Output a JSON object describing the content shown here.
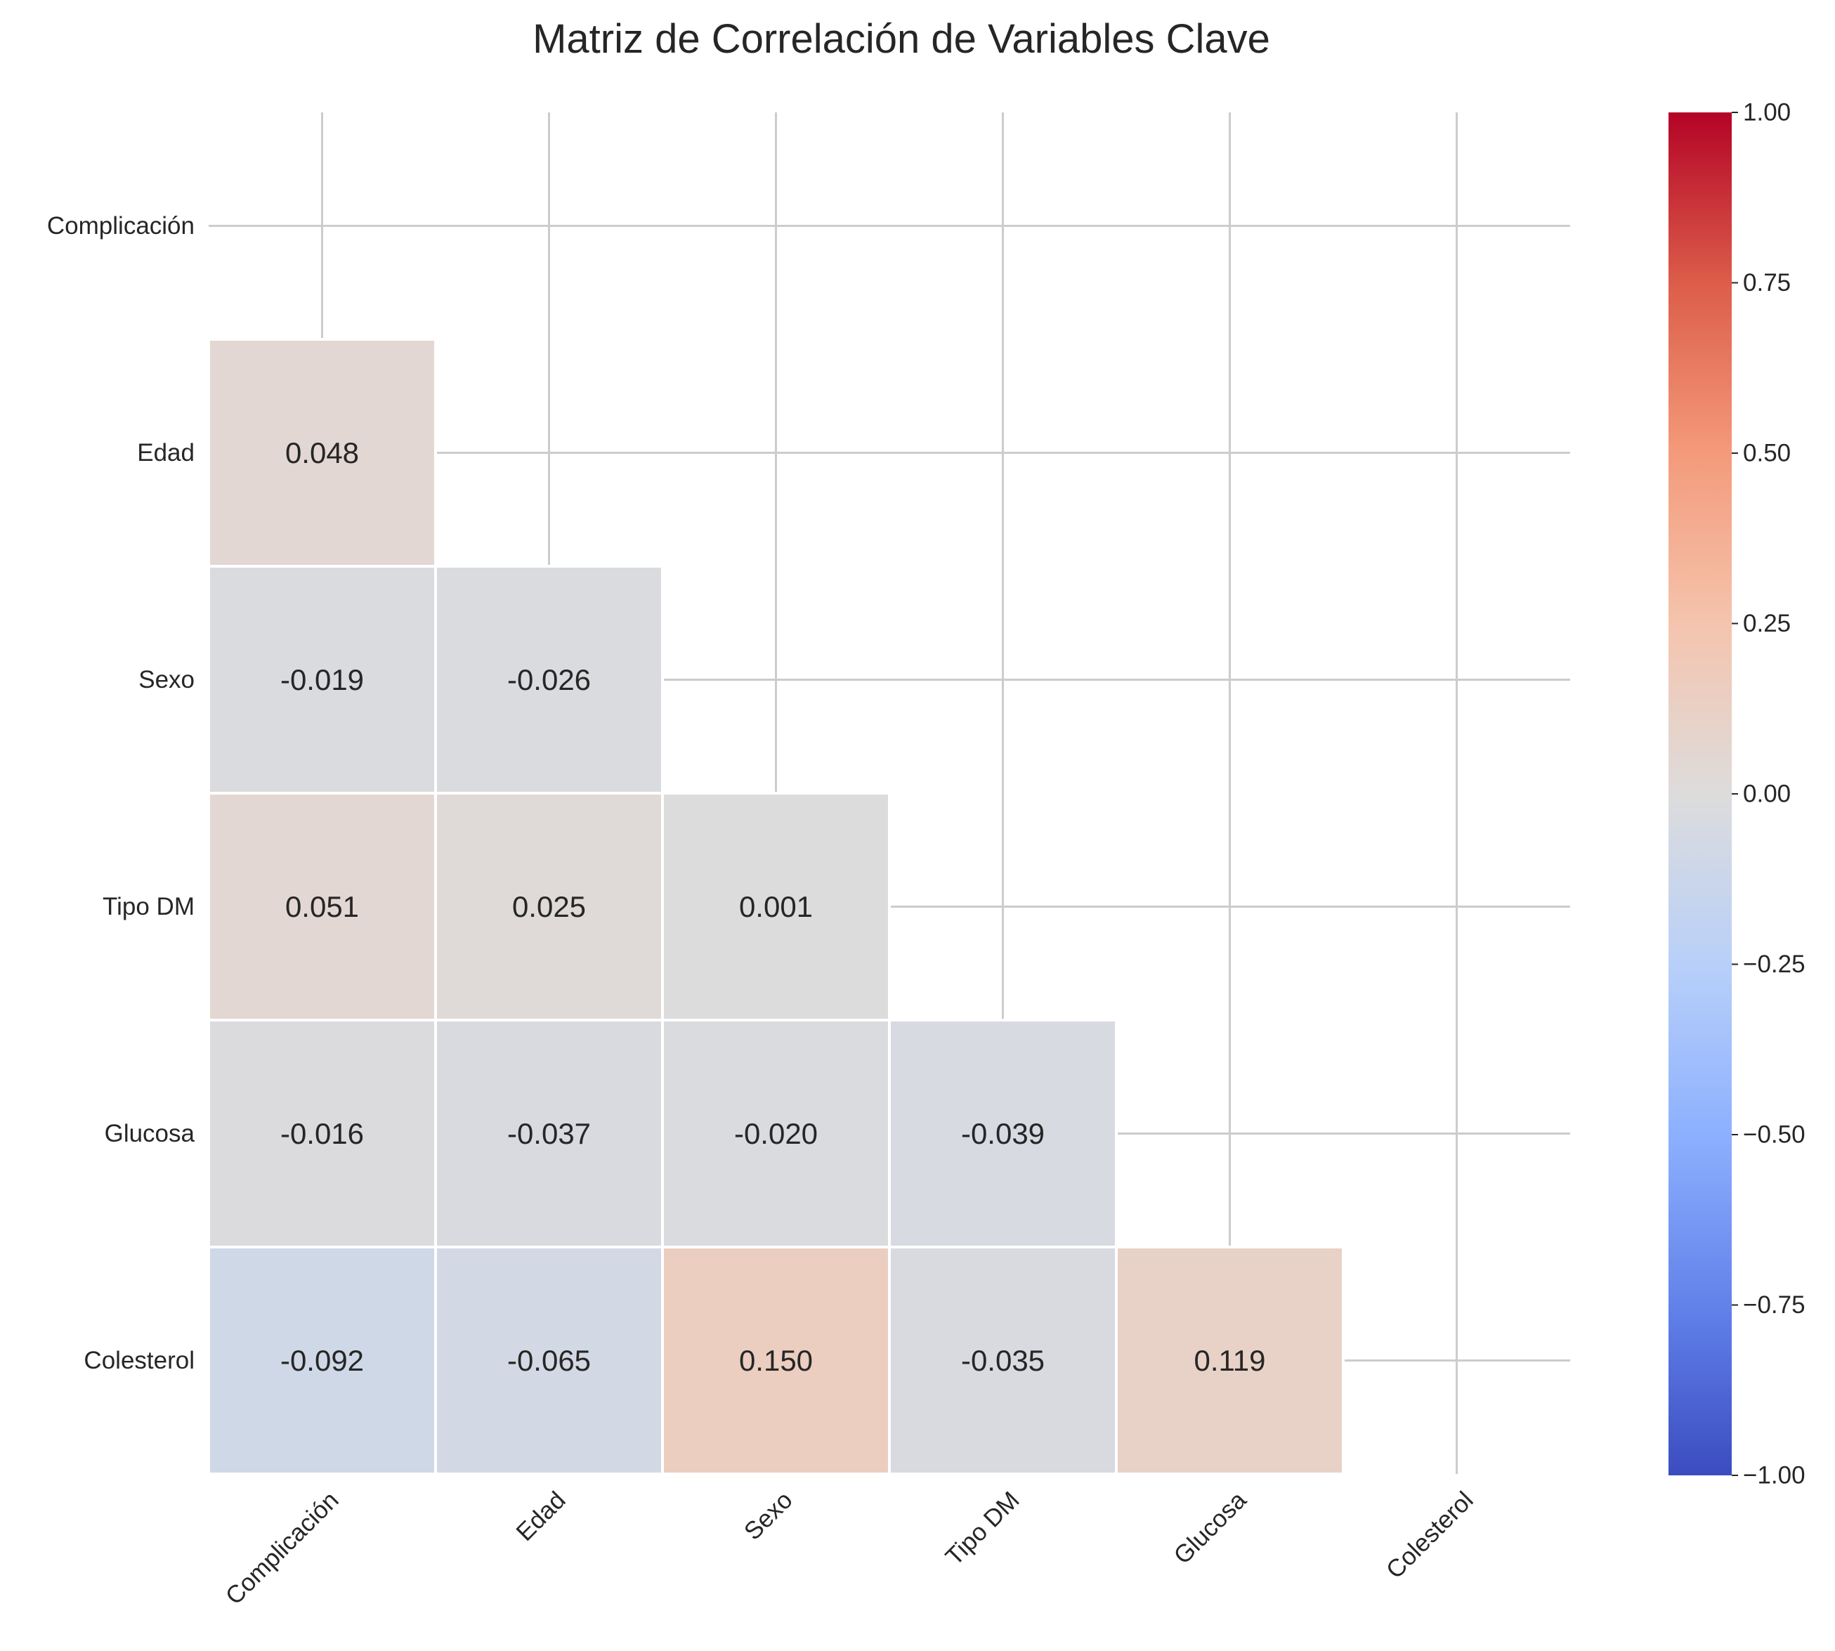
{
  "chart_data": {
    "type": "heatmap",
    "title": "Matriz de Correlación de Variables Clave",
    "variables": [
      "Complicación",
      "Edad",
      "Sexo",
      "Tipo DM",
      "Glucosa",
      "Colesterol"
    ],
    "mask": "upper-triangle-including-diagonal",
    "cells": [
      {
        "row": "Edad",
        "col": "Complicación",
        "value": 0.048,
        "label": "0.048"
      },
      {
        "row": "Sexo",
        "col": "Complicación",
        "value": -0.019,
        "label": "-0.019"
      },
      {
        "row": "Sexo",
        "col": "Edad",
        "value": -0.026,
        "label": "-0.026"
      },
      {
        "row": "Tipo DM",
        "col": "Complicación",
        "value": 0.051,
        "label": "0.051"
      },
      {
        "row": "Tipo DM",
        "col": "Edad",
        "value": 0.025,
        "label": "0.025"
      },
      {
        "row": "Tipo DM",
        "col": "Sexo",
        "value": 0.001,
        "label": "0.001"
      },
      {
        "row": "Glucosa",
        "col": "Complicación",
        "value": -0.016,
        "label": "-0.016"
      },
      {
        "row": "Glucosa",
        "col": "Edad",
        "value": -0.037,
        "label": "-0.037"
      },
      {
        "row": "Glucosa",
        "col": "Sexo",
        "value": -0.02,
        "label": "-0.020"
      },
      {
        "row": "Glucosa",
        "col": "Tipo DM",
        "value": -0.039,
        "label": "-0.039"
      },
      {
        "row": "Colesterol",
        "col": "Complicación",
        "value": -0.092,
        "label": "-0.092"
      },
      {
        "row": "Colesterol",
        "col": "Edad",
        "value": -0.065,
        "label": "-0.065"
      },
      {
        "row": "Colesterol",
        "col": "Sexo",
        "value": 0.15,
        "label": "0.150"
      },
      {
        "row": "Colesterol",
        "col": "Tipo DM",
        "value": -0.035,
        "label": "-0.035"
      },
      {
        "row": "Colesterol",
        "col": "Glucosa",
        "value": 0.119,
        "label": "0.119"
      }
    ],
    "colorbar": {
      "colormap": "coolwarm",
      "vmin": -1.0,
      "vmax": 1.0,
      "ticks": [
        {
          "value": 1.0,
          "label": "1.00"
        },
        {
          "value": 0.75,
          "label": "0.75"
        },
        {
          "value": 0.5,
          "label": "0.50"
        },
        {
          "value": 0.25,
          "label": "0.25"
        },
        {
          "value": 0.0,
          "label": "0.00"
        },
        {
          "value": -0.25,
          "label": "−0.25"
        },
        {
          "value": -0.5,
          "label": "−0.50"
        },
        {
          "value": -0.75,
          "label": "−0.75"
        },
        {
          "value": -1.0,
          "label": "−1.00"
        }
      ]
    },
    "grid": true,
    "xtick_rotation_deg": 45,
    "colors": {
      "grid": "#cccccc",
      "cell_border": "#ffffff",
      "text": "#262626",
      "coolwarm_stops": [
        [
          0.0,
          "#3b4cc0"
        ],
        [
          0.125,
          "#6282ea"
        ],
        [
          0.25,
          "#8db0fe"
        ],
        [
          0.375,
          "#b8d0f9"
        ],
        [
          0.5,
          "#dddcdc"
        ],
        [
          0.625,
          "#f5c4ad"
        ],
        [
          0.75,
          "#f49a7b"
        ],
        [
          0.875,
          "#dc5d4a"
        ],
        [
          1.0,
          "#b40426"
        ]
      ]
    }
  }
}
